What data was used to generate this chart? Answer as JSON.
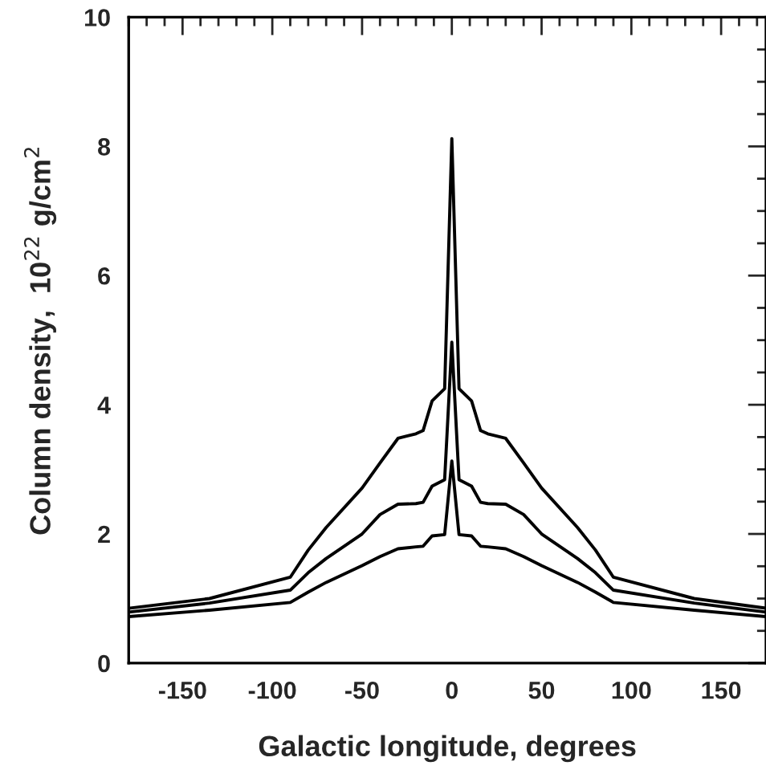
{
  "chart_data": {
    "type": "line",
    "xlabel": "Galactic longitude, degrees",
    "ylabel": "Column density,  10$^{22}$ g/cm$^{2}$",
    "x": [
      -180,
      -135,
      -90,
      -80,
      -70,
      -50,
      -40,
      -30,
      -20,
      -16,
      -11,
      -4,
      0,
      4,
      11,
      16,
      20,
      30,
      40,
      50,
      70,
      80,
      90,
      135,
      175
    ],
    "series": [
      {
        "color": "#000000",
        "values": [
          0.85,
          1.0,
          1.33,
          1.75,
          2.1,
          2.71,
          3.1,
          3.48,
          3.55,
          3.6,
          4.06,
          4.25,
          8.12,
          4.25,
          4.06,
          3.6,
          3.55,
          3.48,
          3.1,
          2.71,
          2.1,
          1.75,
          1.33,
          1.0,
          0.85
        ]
      },
      {
        "color": "#000000",
        "values": [
          0.79,
          0.93,
          1.13,
          1.4,
          1.62,
          2.0,
          2.3,
          2.46,
          2.47,
          2.49,
          2.74,
          2.84,
          4.97,
          2.84,
          2.74,
          2.49,
          2.47,
          2.46,
          2.3,
          2.0,
          1.62,
          1.4,
          1.13,
          0.93,
          0.79
        ]
      },
      {
        "color": "#000000",
        "values": [
          0.72,
          0.82,
          0.94,
          1.1,
          1.25,
          1.51,
          1.65,
          1.77,
          1.8,
          1.81,
          1.97,
          1.99,
          3.13,
          1.99,
          1.97,
          1.81,
          1.8,
          1.77,
          1.65,
          1.51,
          1.25,
          1.1,
          0.94,
          0.82,
          0.72
        ]
      }
    ],
    "xlim": [
      -180,
      175
    ],
    "xticks": [
      -150,
      -100,
      -50,
      0,
      50,
      100,
      150
    ],
    "ylim": [
      0,
      10
    ],
    "yticks": [
      0,
      2,
      4,
      6,
      8,
      10
    ],
    "marker": "none",
    "line_style": "solid"
  }
}
